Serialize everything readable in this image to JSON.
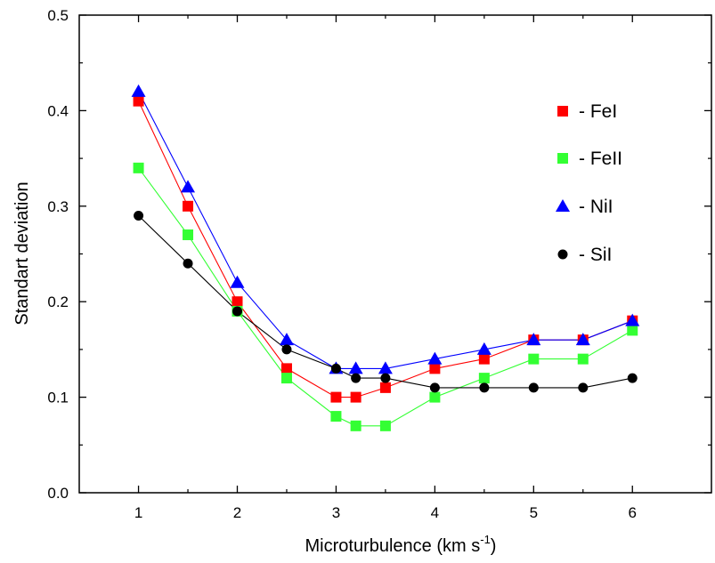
{
  "chart_data": {
    "type": "line",
    "title": "",
    "xlabel": "Microturbulence (km s",
    "xlabel_sup": "-1",
    "xlabel_close": ")",
    "ylabel": "Standart deviation",
    "xlim": [
      0.4,
      6.8
    ],
    "ylim": [
      0.0,
      0.5
    ],
    "xticks": [
      "1",
      "2",
      "3",
      "4",
      "5",
      "6"
    ],
    "yticks": [
      "0.0",
      "0.1",
      "0.2",
      "0.3",
      "0.4",
      "0.5"
    ],
    "legend_position": "top-right",
    "series": [
      {
        "name": "- FeI",
        "color": "#ff0000",
        "marker": "square",
        "points": [
          [
            1,
            0.41
          ],
          [
            1.5,
            0.3
          ],
          [
            2,
            0.2
          ],
          [
            2.5,
            0.13
          ],
          [
            3,
            0.1
          ],
          [
            3.2,
            0.1
          ],
          [
            3.5,
            0.11
          ],
          [
            4,
            0.13
          ],
          [
            4.5,
            0.14
          ],
          [
            5,
            0.16
          ],
          [
            5.5,
            0.16
          ],
          [
            6,
            0.18
          ]
        ]
      },
      {
        "name": "- FeII",
        "color": "#33ff33",
        "marker": "square",
        "points": [
          [
            1,
            0.34
          ],
          [
            1.5,
            0.27
          ],
          [
            2,
            0.19
          ],
          [
            2.5,
            0.12
          ],
          [
            3,
            0.08
          ],
          [
            3.2,
            0.07
          ],
          [
            3.5,
            0.07
          ],
          [
            4,
            0.1
          ],
          [
            4.5,
            0.12
          ],
          [
            5,
            0.14
          ],
          [
            5.5,
            0.14
          ],
          [
            6,
            0.17
          ]
        ]
      },
      {
        "name": "- NiI",
        "color": "#0000ff",
        "marker": "triangle",
        "points": [
          [
            1,
            0.42
          ],
          [
            1.5,
            0.32
          ],
          [
            2,
            0.22
          ],
          [
            2.5,
            0.16
          ],
          [
            3,
            0.13
          ],
          [
            3.2,
            0.13
          ],
          [
            3.5,
            0.13
          ],
          [
            4,
            0.14
          ],
          [
            4.5,
            0.15
          ],
          [
            5,
            0.16
          ],
          [
            5.5,
            0.16
          ],
          [
            6,
            0.18
          ]
        ]
      },
      {
        "name": "- SiI",
        "color": "#000000",
        "marker": "circle",
        "points": [
          [
            1,
            0.29
          ],
          [
            1.5,
            0.24
          ],
          [
            2,
            0.19
          ],
          [
            2.5,
            0.15
          ],
          [
            3,
            0.13
          ],
          [
            3.2,
            0.12
          ],
          [
            3.5,
            0.12
          ],
          [
            4,
            0.11
          ],
          [
            4.5,
            0.11
          ],
          [
            5,
            0.11
          ],
          [
            5.5,
            0.11
          ],
          [
            6,
            0.12
          ]
        ]
      }
    ]
  }
}
